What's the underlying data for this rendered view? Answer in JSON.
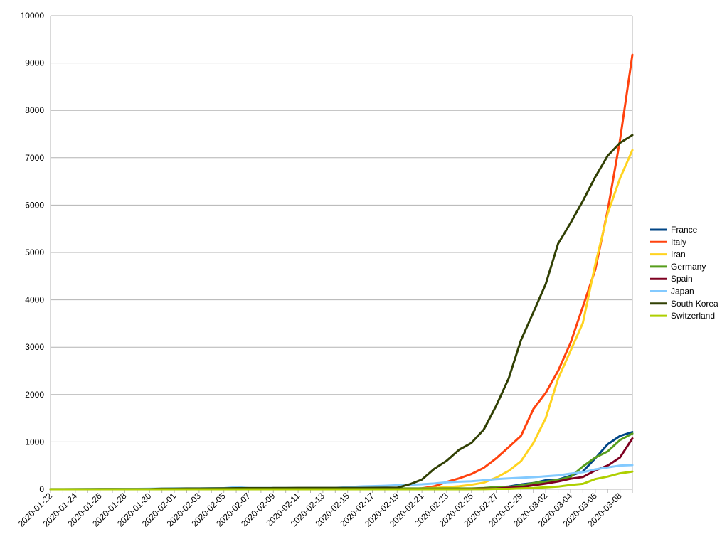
{
  "chart_data": {
    "type": "line",
    "title": "",
    "xlabel": "",
    "ylabel": "",
    "ylim": [
      0,
      10000
    ],
    "yticks": [
      0,
      1000,
      2000,
      3000,
      4000,
      5000,
      6000,
      7000,
      8000,
      9000,
      10000
    ],
    "x": [
      "2020-01-22",
      "2020-01-23",
      "2020-01-24",
      "2020-01-25",
      "2020-01-26",
      "2020-01-27",
      "2020-01-28",
      "2020-01-29",
      "2020-01-30",
      "2020-01-31",
      "2020-02-01",
      "2020-02-02",
      "2020-02-03",
      "2020-02-04",
      "2020-02-05",
      "2020-02-06",
      "2020-02-07",
      "2020-02-08",
      "2020-02-09",
      "2020-02-10",
      "2020-02-11",
      "2020-02-12",
      "2020-02-13",
      "2020-02-14",
      "2020-02-15",
      "2020-02-16",
      "2020-02-17",
      "2020-02-18",
      "2020-02-19",
      "2020-02-20",
      "2020-02-21",
      "2020-02-22",
      "2020-02-23",
      "2020-02-24",
      "2020-02-25",
      "2020-02-26",
      "2020-02-27",
      "2020-02-28",
      "2020-02-29",
      "2020-03-01",
      "2020-03-02",
      "2020-03-03",
      "2020-03-04",
      "2020-03-05",
      "2020-03-06",
      "2020-03-07",
      "2020-03-08",
      "2020-03-09"
    ],
    "xtick_labels": [
      "2020-01-22",
      "2020-01-24",
      "2020-01-26",
      "2020-01-28",
      "2020-01-30",
      "2020-02-01",
      "2020-02-03",
      "2020-02-05",
      "2020-02-07",
      "2020-02-09",
      "2020-02-11",
      "2020-02-13",
      "2020-02-15",
      "2020-02-17",
      "2020-02-19",
      "2020-02-21",
      "2020-02-23",
      "2020-02-25",
      "2020-02-27",
      "2020-02-29",
      "2020-03-02",
      "2020-03-04",
      "2020-03-06",
      "2020-03-08"
    ],
    "grid": true,
    "legend_position": "right",
    "series": [
      {
        "name": "France",
        "color": "#004586",
        "values": [
          0,
          0,
          2,
          3,
          3,
          3,
          4,
          5,
          5,
          5,
          6,
          6,
          6,
          6,
          6,
          6,
          11,
          11,
          11,
          11,
          11,
          11,
          11,
          12,
          12,
          12,
          12,
          12,
          12,
          12,
          12,
          12,
          12,
          12,
          14,
          18,
          38,
          57,
          100,
          130,
          191,
          204,
          285,
          377,
          653,
          949,
          1126,
          1209
        ]
      },
      {
        "name": "Italy",
        "color": "#ff420e",
        "values": [
          0,
          0,
          0,
          0,
          0,
          0,
          0,
          0,
          0,
          2,
          2,
          2,
          2,
          2,
          2,
          2,
          3,
          3,
          3,
          3,
          3,
          3,
          3,
          3,
          3,
          3,
          3,
          3,
          3,
          3,
          20,
          62,
          155,
          229,
          322,
          453,
          655,
          888,
          1128,
          1694,
          2036,
          2502,
          3089,
          3858,
          4636,
          5883,
          7375,
          9172
        ]
      },
      {
        "name": "Iran",
        "color": "#ffd320",
        "values": [
          0,
          0,
          0,
          0,
          0,
          0,
          0,
          0,
          0,
          0,
          0,
          0,
          0,
          0,
          0,
          0,
          0,
          0,
          0,
          0,
          0,
          0,
          0,
          0,
          0,
          0,
          0,
          0,
          2,
          5,
          18,
          28,
          43,
          61,
          95,
          139,
          245,
          388,
          593,
          978,
          1501,
          2336,
          2922,
          3513,
          4747,
          5823,
          6566,
          7161
        ]
      },
      {
        "name": "Germany",
        "color": "#579d1c",
        "values": [
          0,
          0,
          0,
          0,
          0,
          1,
          4,
          4,
          4,
          5,
          8,
          10,
          12,
          12,
          12,
          12,
          13,
          13,
          14,
          14,
          16,
          16,
          16,
          16,
          16,
          16,
          16,
          16,
          16,
          16,
          16,
          16,
          16,
          16,
          17,
          27,
          46,
          48,
          79,
          130,
          159,
          196,
          262,
          482,
          670,
          799,
          1040,
          1176
        ]
      },
      {
        "name": "Spain",
        "color": "#7e0021",
        "values": [
          0,
          0,
          0,
          0,
          0,
          0,
          0,
          0,
          0,
          0,
          1,
          1,
          1,
          1,
          1,
          1,
          1,
          1,
          2,
          2,
          2,
          2,
          2,
          2,
          2,
          2,
          2,
          2,
          2,
          2,
          2,
          2,
          2,
          2,
          6,
          13,
          15,
          32,
          45,
          84,
          120,
          165,
          222,
          259,
          400,
          500,
          673,
          1073
        ]
      },
      {
        "name": "Japan",
        "color": "#83caff",
        "values": [
          2,
          2,
          2,
          2,
          4,
          4,
          7,
          7,
          11,
          15,
          20,
          20,
          20,
          22,
          22,
          45,
          25,
          25,
          26,
          26,
          26,
          28,
          28,
          29,
          43,
          59,
          66,
          74,
          84,
          94,
          105,
          122,
          147,
          159,
          170,
          189,
          214,
          228,
          241,
          256,
          274,
          293,
          331,
          360,
          420,
          461,
          502,
          511
        ]
      },
      {
        "name": "South Korea",
        "color": "#314004",
        "values": [
          1,
          1,
          2,
          2,
          3,
          4,
          4,
          4,
          4,
          11,
          12,
          15,
          15,
          16,
          19,
          23,
          24,
          24,
          25,
          27,
          28,
          28,
          28,
          28,
          28,
          29,
          30,
          31,
          31,
          104,
          204,
          433,
          602,
          833,
          977,
          1261,
          1766,
          2337,
          3150,
          3736,
          4335,
          5186,
          5621,
          6088,
          6593,
          7041,
          7314,
          7478
        ]
      },
      {
        "name": "Switzerland",
        "color": "#aecf00",
        "values": [
          0,
          0,
          0,
          0,
          0,
          0,
          0,
          0,
          0,
          0,
          0,
          0,
          0,
          0,
          0,
          0,
          0,
          0,
          0,
          0,
          0,
          0,
          0,
          0,
          0,
          0,
          0,
          0,
          0,
          0,
          0,
          0,
          0,
          0,
          1,
          1,
          8,
          8,
          18,
          27,
          42,
          56,
          90,
          114,
          214,
          268,
          337,
          374
        ]
      }
    ]
  }
}
